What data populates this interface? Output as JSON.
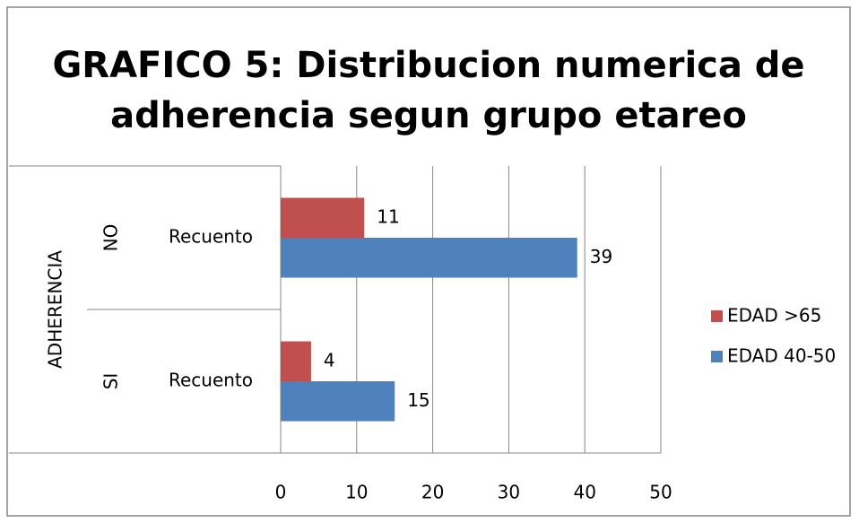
{
  "chart_data": {
    "type": "barh",
    "title": [
      "GRAFICO 5: Distribucion numerica de",
      "adherencia segun grupo etareo"
    ],
    "y_label": "ADHERENCIA",
    "category_groups": [
      "NO",
      "SI"
    ],
    "categories": [
      "Recuento",
      "Recuento"
    ],
    "series": [
      {
        "name": "EDAD >65",
        "color": "#c0504d",
        "values": [
          11,
          4
        ]
      },
      {
        "name": "EDAD 40-50",
        "color": "#4f81bd",
        "values": [
          39,
          15
        ]
      }
    ],
    "xlim": [
      0,
      50
    ],
    "xticks": [
      0,
      10,
      20,
      30,
      40,
      50
    ],
    "grid": true,
    "legend": "right"
  }
}
